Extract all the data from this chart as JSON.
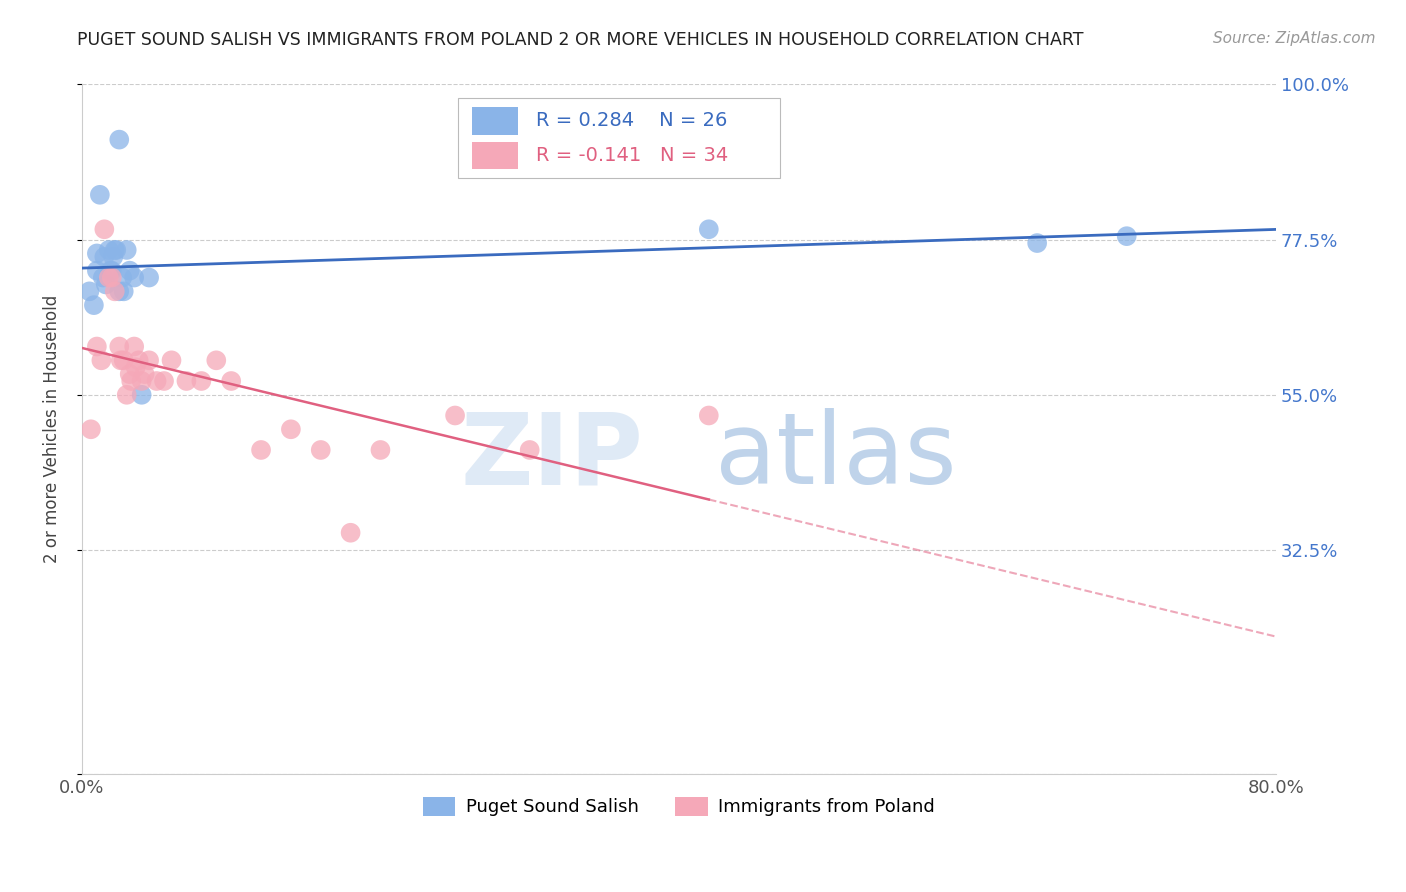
{
  "title": "PUGET SOUND SALISH VS IMMIGRANTS FROM POLAND 2 OR MORE VEHICLES IN HOUSEHOLD CORRELATION CHART",
  "source": "Source: ZipAtlas.com",
  "ylabel_label": "2 or more Vehicles in Household",
  "legend1_label": "Puget Sound Salish",
  "legend2_label": "Immigrants from Poland",
  "R1": 0.284,
  "N1": 26,
  "R2": -0.141,
  "N2": 34,
  "blue_color": "#8ab4e8",
  "pink_color": "#f5a8b8",
  "line_blue": "#3a6bbf",
  "line_pink": "#e06080",
  "watermark_zip": "ZIP",
  "watermark_atlas": "atlas",
  "xlim": [
    0.0,
    0.8
  ],
  "ylim": [
    0.0,
    1.0
  ],
  "ytick_vals": [
    0.0,
    0.325,
    0.55,
    0.775,
    1.0
  ],
  "ytick_labels": [
    "",
    "32.5%",
    "55.0%",
    "77.5%",
    "100.0%"
  ],
  "xtick_vals": [
    0.0,
    0.1,
    0.2,
    0.3,
    0.4,
    0.5,
    0.6,
    0.7,
    0.8
  ],
  "xtick_labels": [
    "0.0%",
    "",
    "",
    "",
    "",
    "",
    "",
    "",
    "80.0%"
  ],
  "blue_x": [
    0.005,
    0.008,
    0.01,
    0.01,
    0.012,
    0.014,
    0.015,
    0.016,
    0.018,
    0.019,
    0.02,
    0.021,
    0.022,
    0.023,
    0.025,
    0.025,
    0.027,
    0.028,
    0.03,
    0.032,
    0.035,
    0.04,
    0.045,
    0.42,
    0.64,
    0.7
  ],
  "blue_y": [
    0.7,
    0.68,
    0.755,
    0.73,
    0.84,
    0.72,
    0.75,
    0.71,
    0.76,
    0.73,
    0.73,
    0.75,
    0.76,
    0.76,
    0.7,
    0.92,
    0.72,
    0.7,
    0.76,
    0.73,
    0.72,
    0.55,
    0.72,
    0.79,
    0.77,
    0.78
  ],
  "pink_x": [
    0.006,
    0.01,
    0.013,
    0.015,
    0.018,
    0.02,
    0.022,
    0.025,
    0.026,
    0.028,
    0.03,
    0.032,
    0.033,
    0.035,
    0.036,
    0.038,
    0.04,
    0.042,
    0.045,
    0.05,
    0.055,
    0.06,
    0.07,
    0.08,
    0.09,
    0.1,
    0.12,
    0.14,
    0.16,
    0.18,
    0.2,
    0.25,
    0.3,
    0.42
  ],
  "pink_y": [
    0.5,
    0.62,
    0.6,
    0.79,
    0.72,
    0.72,
    0.7,
    0.62,
    0.6,
    0.6,
    0.55,
    0.58,
    0.57,
    0.62,
    0.59,
    0.6,
    0.57,
    0.58,
    0.6,
    0.57,
    0.57,
    0.6,
    0.57,
    0.57,
    0.6,
    0.57,
    0.47,
    0.5,
    0.47,
    0.35,
    0.47,
    0.52,
    0.47,
    0.52
  ]
}
